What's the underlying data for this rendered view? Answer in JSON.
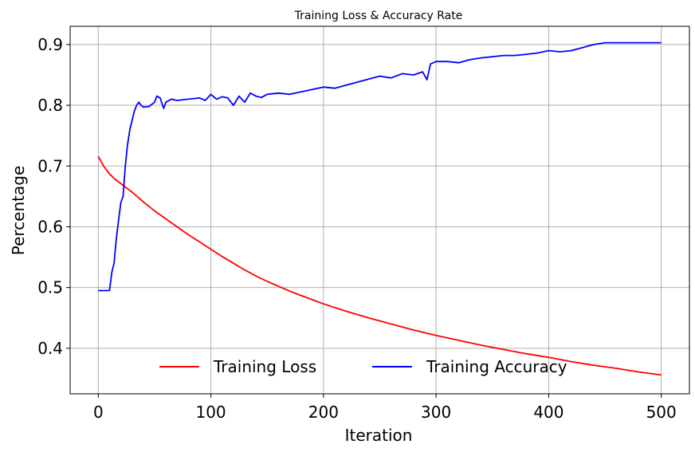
{
  "chart_data": {
    "type": "line",
    "title": "Training Loss & Accuracy Rate",
    "xlabel": "Iteration",
    "ylabel": "Percentage",
    "xlim": [
      -25,
      525
    ],
    "ylim": [
      0.325,
      0.93
    ],
    "xticks": [
      0,
      100,
      200,
      300,
      400,
      500
    ],
    "xtick_labels": [
      "0",
      "100",
      "200",
      "300",
      "400",
      "500"
    ],
    "yticks": [
      0.4,
      0.5,
      0.6,
      0.7,
      0.8,
      0.9
    ],
    "ytick_labels": [
      "0.4",
      "0.5",
      "0.6",
      "0.7",
      "0.8",
      "0.9"
    ],
    "grid": true,
    "legend": {
      "placement": "lower-center",
      "columns": 2
    },
    "series": [
      {
        "name": "Training Loss",
        "color": "#ff0000",
        "x": [
          0,
          5,
          10,
          15,
          20,
          25,
          30,
          40,
          50,
          60,
          70,
          80,
          90,
          100,
          110,
          120,
          130,
          140,
          150,
          160,
          170,
          180,
          190,
          200,
          220,
          240,
          260,
          280,
          300,
          320,
          340,
          360,
          380,
          400,
          420,
          440,
          460,
          480,
          500
        ],
        "y": [
          0.716,
          0.699,
          0.687,
          0.678,
          0.671,
          0.664,
          0.657,
          0.641,
          0.626,
          0.613,
          0.6,
          0.587,
          0.575,
          0.563,
          0.551,
          0.54,
          0.529,
          0.519,
          0.51,
          0.502,
          0.494,
          0.487,
          0.48,
          0.473,
          0.461,
          0.45,
          0.44,
          0.43,
          0.421,
          0.413,
          0.405,
          0.398,
          0.391,
          0.385,
          0.378,
          0.372,
          0.367,
          0.361,
          0.356
        ]
      },
      {
        "name": "Training Accuracy",
        "color": "#0000ff",
        "x": [
          0,
          5,
          10,
          12,
          14,
          16,
          18,
          20,
          22,
          24,
          26,
          28,
          30,
          32,
          34,
          36,
          38,
          40,
          45,
          50,
          52,
          55,
          58,
          60,
          65,
          70,
          80,
          90,
          95,
          100,
          105,
          110,
          115,
          120,
          125,
          130,
          135,
          140,
          145,
          150,
          160,
          170,
          180,
          190,
          200,
          210,
          220,
          230,
          240,
          250,
          260,
          270,
          280,
          288,
          292,
          295,
          300,
          310,
          320,
          330,
          340,
          350,
          360,
          370,
          380,
          390,
          400,
          410,
          420,
          430,
          440,
          450,
          460,
          470,
          480,
          490,
          500
        ],
        "y": [
          0.495,
          0.495,
          0.495,
          0.525,
          0.54,
          0.58,
          0.61,
          0.64,
          0.65,
          0.7,
          0.735,
          0.76,
          0.775,
          0.79,
          0.8,
          0.805,
          0.8,
          0.797,
          0.798,
          0.805,
          0.815,
          0.812,
          0.795,
          0.805,
          0.81,
          0.808,
          0.81,
          0.812,
          0.808,
          0.818,
          0.81,
          0.814,
          0.812,
          0.8,
          0.815,
          0.805,
          0.82,
          0.815,
          0.813,
          0.818,
          0.82,
          0.818,
          0.822,
          0.826,
          0.83,
          0.828,
          0.833,
          0.838,
          0.843,
          0.848,
          0.845,
          0.852,
          0.85,
          0.855,
          0.842,
          0.868,
          0.872,
          0.872,
          0.87,
          0.875,
          0.878,
          0.88,
          0.882,
          0.882,
          0.884,
          0.886,
          0.89,
          0.888,
          0.89,
          0.895,
          0.9,
          0.903,
          0.903,
          0.903,
          0.903,
          0.903,
          0.903
        ]
      }
    ]
  }
}
